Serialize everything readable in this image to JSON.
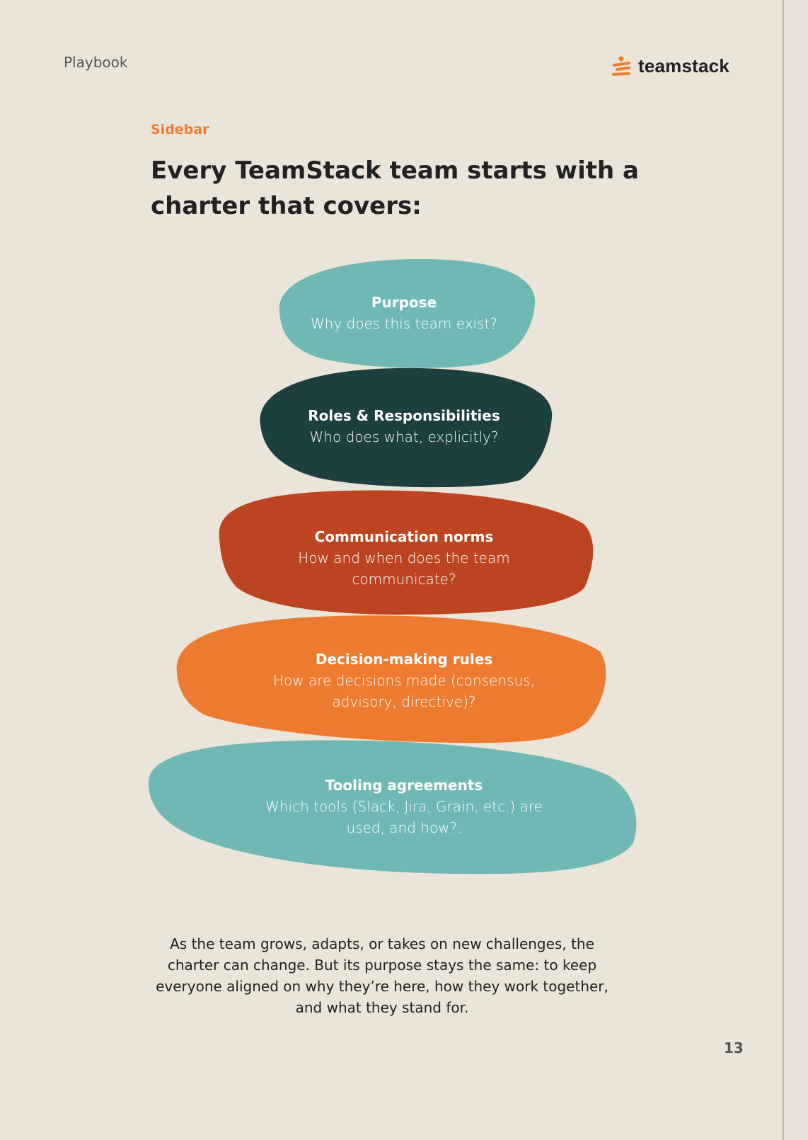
{
  "header": {
    "section": "Playbook",
    "brand": "teamstack"
  },
  "kicker": "Sidebar",
  "title": "Every TeamStack team starts with a charter that covers:",
  "colors": {
    "background": "#ebe4d8",
    "accent": "#ee7d2f",
    "teal": "#6fb8b3",
    "dark_green": "#1c3f40",
    "rust": "#bd4421",
    "orange": "#ec7b30"
  },
  "stack": [
    {
      "title": "Purpose",
      "desc": "Why does this team exist?"
    },
    {
      "title": "Roles & Responsibilities",
      "desc": "Who does what, explicitly?"
    },
    {
      "title": "Communication norms",
      "desc": "How and when does the team communicate?"
    },
    {
      "title": "Decision-making rules",
      "desc": "How are decisions made (consensus, advisory, directive)?"
    },
    {
      "title": "Tooling agreements",
      "desc": "Which tools (Slack, Jira, Grain, etc.) are used, and how?."
    }
  ],
  "footer": "As the team grows, adapts, or takes on new challenges, the charter can change. But its purpose stays the same: to keep everyone aligned on why they’re here, how they work together, and what they stand for.",
  "page_number": "13"
}
